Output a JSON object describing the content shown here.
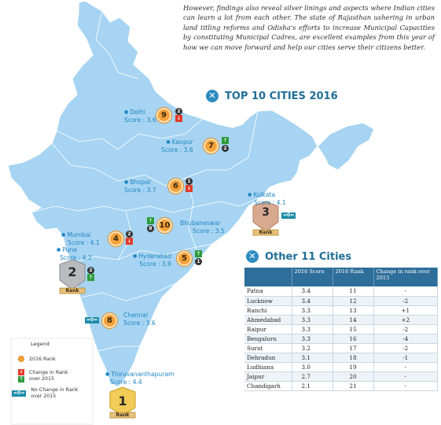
{
  "intro": "However, findings also reveal silver linings and aspects where Indian cities can learn a lot from each other. The state of Rajasthan ushering in urban land titling reforms and Odisha's efforts to increase Municipal Capacities by constituting Municipal Cadres, are excellent examples from this year of how we can move forward and help our cities serve their citizens better.",
  "top_heading": "TOP 10 CITIES 2016",
  "other_heading": "Other 11 Cities",
  "colors": {
    "map_fill": "#a6d4f2",
    "map_stroke": "#ffffff",
    "accent": "#2e6e9a",
    "rank_circle": "#f6a13a",
    "up": "#2e9c3d",
    "down": "#e23b2a"
  },
  "top_cities": [
    {
      "name": "Delhi",
      "score": "Score : 3.6",
      "rank": "9",
      "change": "down",
      "change_by": "2"
    },
    {
      "name": "Kanpur",
      "score": "Score : 3.6",
      "rank": "7",
      "change": "up",
      "change_by": "2"
    },
    {
      "name": "Bhopal",
      "score": "Score : 3.7",
      "rank": "6",
      "change": "down",
      "change_by": "1"
    },
    {
      "name": "Kolkata",
      "score": "Score : 4.1",
      "rank": "3",
      "change": "none",
      "change_by": "=0="
    },
    {
      "name": "Bhubaneswar",
      "score": "Score : 3.5",
      "rank": "10",
      "change": "up",
      "change_by": "8"
    },
    {
      "name": "Mumbai",
      "score": "Score : 4.1",
      "rank": "4",
      "change": "down",
      "change_by": "2"
    },
    {
      "name": "Pune",
      "score": "Score : 4.2",
      "rank": "2",
      "change": "up",
      "change_by": "2"
    },
    {
      "name": "Hyderabad",
      "score": "Score : 3.9",
      "rank": "5",
      "change": "up",
      "change_by": "1"
    },
    {
      "name": "Chennai",
      "score": "Score : 3.6",
      "rank": "8",
      "change": "none",
      "change_by": "=0="
    },
    {
      "name": "Thiruvananthapuram",
      "score": "Score : 4.4",
      "rank": "1",
      "change": "none",
      "change_by": ""
    }
  ],
  "badge_rank_label": "Rank",
  "legend": {
    "title": "Legend",
    "rank_label": "2016 Rank",
    "change_label_1": "Change in Rank",
    "change_label_2": "over 2015",
    "nochange_label_1": "No Change in Rank",
    "nochange_label_2": "over 2015",
    "nochange_glyph": "=0="
  },
  "table": {
    "headers": [
      "",
      "2016 Score",
      "2016 Rank",
      "Change in rank over 2015"
    ],
    "rows": [
      [
        "Patna",
        "3.4",
        "11",
        "-"
      ],
      [
        "Lucknow",
        "3.4",
        "12",
        "-2"
      ],
      [
        "Ranchi",
        "3.3",
        "13",
        "+1"
      ],
      [
        "Ahmedabad",
        "3.3",
        "14",
        "+2"
      ],
      [
        "Raipur",
        "3.3",
        "15",
        "-2"
      ],
      [
        "Bengaluru",
        "3.3",
        "16",
        "-4"
      ],
      [
        "Surat",
        "3.2",
        "17",
        "-2"
      ],
      [
        "Dehradun",
        "3.1",
        "18",
        "-1"
      ],
      [
        "Ludhiana",
        "3.0",
        "19",
        "-"
      ],
      [
        "Jaipur",
        "2.7",
        "20",
        "-"
      ],
      [
        "Chandigarh",
        "2.1",
        "21",
        "-"
      ]
    ]
  }
}
